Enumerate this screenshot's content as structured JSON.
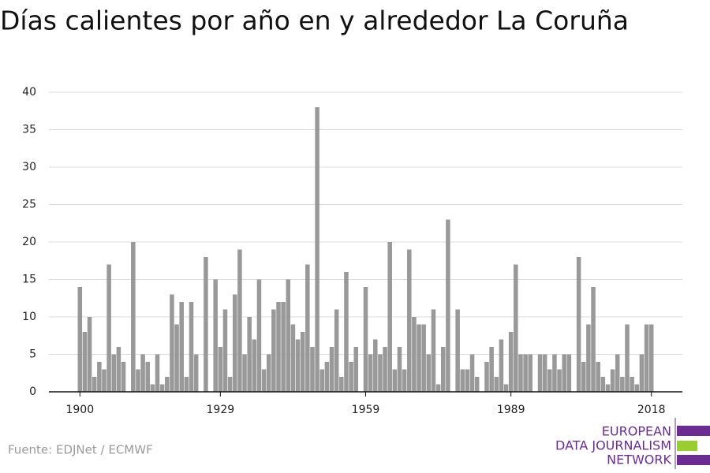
{
  "chart_data": {
    "type": "bar",
    "title": "Días calientes por año en y alrededor La Coruña",
    "source": "Fuente: EDJNet / ECMWF",
    "color": "#999999",
    "grid": true,
    "x": [
      1900,
      1901,
      1902,
      1903,
      1904,
      1905,
      1906,
      1907,
      1908,
      1909,
      1910,
      1911,
      1912,
      1913,
      1914,
      1915,
      1916,
      1917,
      1918,
      1919,
      1920,
      1921,
      1922,
      1923,
      1924,
      1925,
      1926,
      1927,
      1928,
      1929,
      1930,
      1931,
      1932,
      1933,
      1934,
      1935,
      1936,
      1937,
      1938,
      1939,
      1940,
      1941,
      1942,
      1943,
      1944,
      1945,
      1946,
      1947,
      1948,
      1949,
      1950,
      1951,
      1952,
      1953,
      1954,
      1955,
      1956,
      1957,
      1958,
      1959,
      1960,
      1961,
      1962,
      1963,
      1964,
      1965,
      1966,
      1967,
      1968,
      1969,
      1970,
      1971,
      1972,
      1973,
      1974,
      1975,
      1976,
      1977,
      1978,
      1979,
      1980,
      1981,
      1982,
      1983,
      1984,
      1985,
      1986,
      1987,
      1988,
      1989,
      1990,
      1991,
      1992,
      1993,
      1994,
      1995,
      1996,
      1997,
      1998,
      1999,
      2000,
      2001,
      2002,
      2003,
      2004,
      2005,
      2006,
      2007,
      2008,
      2009,
      2010,
      2011,
      2012,
      2013,
      2014,
      2015,
      2016,
      2017,
      2018
    ],
    "values": [
      14,
      8,
      10,
      2,
      4,
      3,
      17,
      5,
      6,
      4,
      0,
      20,
      3,
      5,
      4,
      1,
      5,
      1,
      2,
      13,
      9,
      12,
      2,
      12,
      5,
      0,
      18,
      0,
      15,
      6,
      11,
      2,
      13,
      19,
      5,
      10,
      7,
      15,
      3,
      5,
      11,
      12,
      12,
      15,
      9,
      7,
      8,
      17,
      6,
      38,
      3,
      4,
      6,
      11,
      2,
      16,
      4,
      6,
      0,
      14,
      5,
      7,
      5,
      6,
      20,
      3,
      6,
      3,
      19,
      10,
      9,
      9,
      5,
      11,
      1,
      6,
      23,
      0,
      11,
      3,
      3,
      5,
      2,
      0,
      4,
      6,
      2,
      7,
      1,
      8,
      17,
      5,
      5,
      5,
      0,
      5,
      5,
      3,
      5,
      3,
      5,
      5,
      0,
      18,
      4,
      9,
      14,
      4,
      2,
      1,
      3,
      5,
      2,
      9,
      2,
      1,
      5,
      9,
      9
    ],
    "xlim": [
      1893.6,
      2024.4
    ],
    "xticks": [
      1900,
      1929,
      1959,
      1989,
      2018
    ],
    "ylim": [
      0,
      40
    ],
    "yticks": [
      0,
      5,
      10,
      15,
      20,
      25,
      30,
      35,
      40
    ]
  },
  "logo": {
    "lines": [
      "EUROPEAN",
      "DATA JOURNALISM",
      "NETWORK"
    ]
  }
}
